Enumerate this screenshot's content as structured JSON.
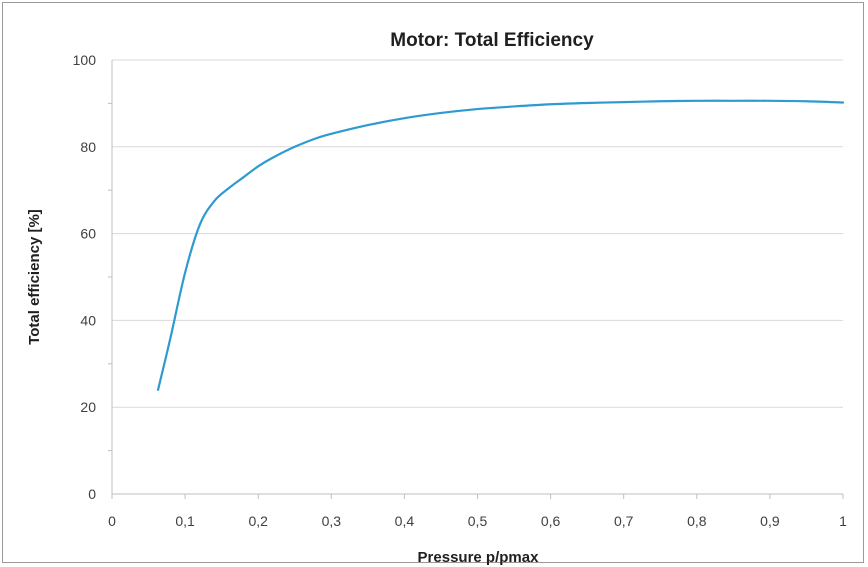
{
  "chart_data": {
    "type": "line",
    "title": "Motor: Total Efficiency",
    "xlabel": "Pressure p/pmax",
    "ylabel": "Total efficiency [%]",
    "xlim": [
      0,
      1
    ],
    "ylim": [
      0,
      100
    ],
    "x_ticks": [
      "0",
      "0,1",
      "0,2",
      "0,3",
      "0,4",
      "0,5",
      "0,6",
      "0,7",
      "0,8",
      "0,9",
      "1"
    ],
    "y_ticks": [
      "0",
      "20",
      "40",
      "60",
      "80",
      "100"
    ],
    "grid": "horizontal",
    "legend": "none",
    "series": [
      {
        "color": "#2e9bd0",
        "x": [
          0.063,
          0.08,
          0.1,
          0.12,
          0.14,
          0.16,
          0.18,
          0.2,
          0.22,
          0.25,
          0.28,
          0.3,
          0.35,
          0.4,
          0.45,
          0.5,
          0.55,
          0.6,
          0.65,
          0.7,
          0.75,
          0.8,
          0.85,
          0.9,
          0.95,
          1.0
        ],
        "y": [
          24,
          36,
          51,
          62,
          67.5,
          70.5,
          73,
          75.5,
          77.5,
          80,
          82,
          83,
          85,
          86.6,
          87.8,
          88.7,
          89.3,
          89.8,
          90.1,
          90.3,
          90.5,
          90.6,
          90.6,
          90.6,
          90.5,
          90.2
        ]
      }
    ]
  }
}
